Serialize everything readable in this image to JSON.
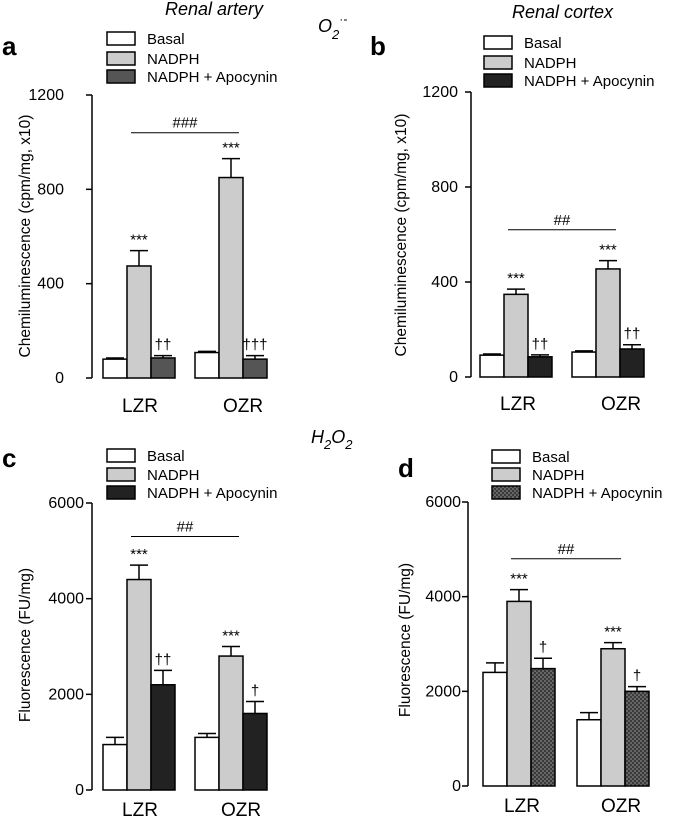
{
  "headers": {
    "top_left": "Renal artery",
    "top_right": "Renal cortex",
    "top_species": "O",
    "top_species_sub": "2",
    "top_species_sup": "·-",
    "bottom_species": "H",
    "bottom_species_sub1": "2",
    "bottom_species_mid": "O",
    "bottom_species_sub2": "2"
  },
  "colors": {
    "basal": "#ffffff",
    "nadph": "#cccccc",
    "apocynin_a": "#555555",
    "apocynin_dark": "#222222",
    "axis": "#000000"
  },
  "chart_data": [
    {
      "panel": "a",
      "type": "bar",
      "ylabel": "Chemiluminescence (cpm/mg, x10)",
      "ylim": [
        0,
        1200
      ],
      "yticks": [
        0,
        400,
        800,
        1200
      ],
      "categories": [
        "LZR",
        "OZR"
      ],
      "legend": [
        "Basal",
        "NADPH",
        "NADPH + Apocynin"
      ],
      "series": [
        {
          "name": "Basal",
          "values": [
            80,
            108
          ],
          "errors": [
            5,
            5
          ],
          "labels": [
            "",
            ""
          ]
        },
        {
          "name": "NADPH",
          "values": [
            475,
            850
          ],
          "errors": [
            65,
            80
          ],
          "labels": [
            "***",
            "***"
          ]
        },
        {
          "name": "NADPH + Apocynin",
          "values": [
            85,
            80
          ],
          "errors": [
            10,
            15
          ],
          "labels": [
            "††",
            "†††"
          ]
        }
      ],
      "bracket": {
        "label": "###",
        "level": 1040
      }
    },
    {
      "panel": "b",
      "type": "bar",
      "ylabel": "Chemiluminescence (cpm/mg, x10)",
      "ylim": [
        0,
        1200
      ],
      "yticks": [
        0,
        400,
        800,
        1200
      ],
      "categories": [
        "LZR",
        "OZR"
      ],
      "legend": [
        "Basal",
        "NADPH",
        "NADPH + Apocynin"
      ],
      "series": [
        {
          "name": "Basal",
          "values": [
            92,
            105
          ],
          "errors": [
            5,
            5
          ],
          "labels": [
            "",
            ""
          ]
        },
        {
          "name": "NADPH",
          "values": [
            348,
            455
          ],
          "errors": [
            22,
            35
          ],
          "labels": [
            "***",
            "***"
          ]
        },
        {
          "name": "NADPH + Apocynin",
          "values": [
            85,
            118
          ],
          "errors": [
            8,
            18
          ],
          "labels": [
            "††",
            "††"
          ]
        }
      ],
      "bracket": {
        "label": "##",
        "level": 620
      }
    },
    {
      "panel": "c",
      "type": "bar",
      "ylabel": "Fluorescence (FU/mg)",
      "ylim": [
        0,
        6000
      ],
      "yticks": [
        0,
        2000,
        4000,
        6000
      ],
      "categories": [
        "LZR",
        "OZR"
      ],
      "legend": [
        "Basal",
        "NADPH",
        "NADPH + Apocynin"
      ],
      "series": [
        {
          "name": "Basal",
          "values": [
            950,
            1100
          ],
          "errors": [
            150,
            80
          ],
          "labels": [
            "",
            ""
          ]
        },
        {
          "name": "NADPH",
          "values": [
            4400,
            2800
          ],
          "errors": [
            300,
            200
          ],
          "labels": [
            "***",
            "***"
          ]
        },
        {
          "name": "NADPH + Apocynin",
          "values": [
            2200,
            1600
          ],
          "errors": [
            300,
            250
          ],
          "labels": [
            "††",
            "†"
          ]
        }
      ],
      "bracket": {
        "label": "##",
        "level": 5300
      }
    },
    {
      "panel": "d",
      "type": "bar",
      "ylabel": "Fluorescence (FU/mg)",
      "ylim": [
        0,
        6000
      ],
      "yticks": [
        0,
        2000,
        4000,
        6000
      ],
      "categories": [
        "LZR",
        "OZR"
      ],
      "legend": [
        "Basal",
        "NADPH",
        "NADPH + Apocynin"
      ],
      "series": [
        {
          "name": "Basal",
          "values": [
            2400,
            1400
          ],
          "errors": [
            200,
            150
          ],
          "labels": [
            "",
            ""
          ]
        },
        {
          "name": "NADPH",
          "values": [
            3900,
            2900
          ],
          "errors": [
            250,
            130
          ],
          "labels": [
            "***",
            "***"
          ]
        },
        {
          "name": "NADPH + Apocynin",
          "values": [
            2480,
            2000
          ],
          "errors": [
            220,
            100
          ],
          "labels": [
            "†",
            "†"
          ]
        }
      ],
      "bracket": {
        "label": "##",
        "level": 4800
      }
    }
  ]
}
